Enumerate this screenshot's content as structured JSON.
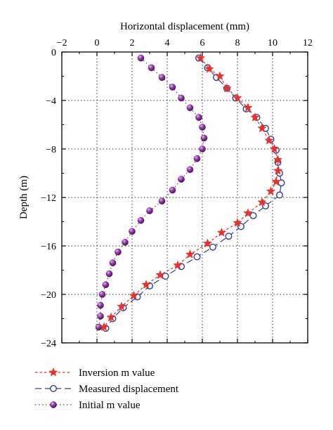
{
  "chart_data": {
    "type": "line",
    "title": "",
    "xlabel": "Horizontal displacement (mm)",
    "ylabel": "Depth (m)",
    "xlim": [
      -2,
      12
    ],
    "ylim": [
      -24,
      0
    ],
    "xticks": [
      -2,
      0,
      2,
      4,
      6,
      8,
      10,
      12
    ],
    "yticks": [
      0,
      -4,
      -8,
      -12,
      -16,
      -20,
      -24
    ],
    "grid": true,
    "legend_position": "bottom",
    "series": [
      {
        "name": "Inversion m value",
        "color": "#e8312a",
        "marker": "star",
        "line": "dashed",
        "points": [
          [
            5.9,
            -0.5
          ],
          [
            6.4,
            -1.4
          ],
          [
            7.0,
            -2.0
          ],
          [
            7.4,
            -3.0
          ],
          [
            8.0,
            -3.8
          ],
          [
            8.6,
            -4.6
          ],
          [
            9.0,
            -5.4
          ],
          [
            9.4,
            -6.3
          ],
          [
            9.8,
            -7.3
          ],
          [
            10.1,
            -8.0
          ],
          [
            10.3,
            -8.9
          ],
          [
            10.3,
            -9.8
          ],
          [
            10.2,
            -10.7
          ],
          [
            9.9,
            -11.5
          ],
          [
            9.4,
            -12.4
          ],
          [
            8.6,
            -13.3
          ],
          [
            8.0,
            -14.1
          ],
          [
            7.1,
            -14.9
          ],
          [
            6.3,
            -15.8
          ],
          [
            5.3,
            -16.7
          ],
          [
            4.6,
            -17.6
          ],
          [
            3.6,
            -18.4
          ],
          [
            2.8,
            -19.2
          ],
          [
            2.1,
            -20.1
          ],
          [
            1.4,
            -21.0
          ],
          [
            0.8,
            -21.9
          ],
          [
            0.4,
            -22.7
          ]
        ]
      },
      {
        "name": "Measured displacement",
        "color": "#2d3f9c",
        "marker": "circle",
        "line": "longdash",
        "points": [
          [
            5.8,
            -0.5
          ],
          [
            6.3,
            -1.3
          ],
          [
            6.8,
            -2.1
          ],
          [
            7.4,
            -3.0
          ],
          [
            7.9,
            -3.8
          ],
          [
            8.5,
            -4.7
          ],
          [
            9.1,
            -5.4
          ],
          [
            9.6,
            -6.3
          ],
          [
            9.9,
            -7.2
          ],
          [
            10.2,
            -8.1
          ],
          [
            10.3,
            -9.1
          ],
          [
            10.4,
            -10.0
          ],
          [
            10.5,
            -10.8
          ],
          [
            10.4,
            -11.8
          ],
          [
            9.6,
            -12.7
          ],
          [
            8.9,
            -13.5
          ],
          [
            8.2,
            -14.4
          ],
          [
            7.5,
            -15.2
          ],
          [
            6.6,
            -16.1
          ],
          [
            5.7,
            -16.9
          ],
          [
            4.8,
            -17.7
          ],
          [
            3.9,
            -18.5
          ],
          [
            3.0,
            -19.3
          ],
          [
            2.3,
            -20.2
          ],
          [
            1.5,
            -21.1
          ],
          [
            0.9,
            -22.0
          ],
          [
            0.5,
            -22.8
          ]
        ]
      },
      {
        "name": "Initial m value",
        "color": "#7b2c8e",
        "marker": "sphere",
        "line": "dotted",
        "points": [
          [
            2.5,
            -0.5
          ],
          [
            3.1,
            -1.3
          ],
          [
            3.7,
            -2.1
          ],
          [
            4.3,
            -2.9
          ],
          [
            4.8,
            -3.8
          ],
          [
            5.3,
            -4.6
          ],
          [
            5.8,
            -5.4
          ],
          [
            6.0,
            -6.2
          ],
          [
            6.1,
            -7.1
          ],
          [
            6.0,
            -8.0
          ],
          [
            5.7,
            -8.8
          ],
          [
            5.3,
            -9.7
          ],
          [
            4.8,
            -10.5
          ],
          [
            4.3,
            -11.4
          ],
          [
            3.7,
            -12.3
          ],
          [
            3.0,
            -13.1
          ],
          [
            2.5,
            -13.9
          ],
          [
            2.0,
            -14.8
          ],
          [
            1.6,
            -15.7
          ],
          [
            1.2,
            -16.5
          ],
          [
            0.9,
            -17.4
          ],
          [
            0.7,
            -18.3
          ],
          [
            0.5,
            -19.2
          ],
          [
            0.3,
            -20.0
          ],
          [
            0.2,
            -20.9
          ],
          [
            0.2,
            -21.8
          ],
          [
            0.1,
            -22.7
          ]
        ]
      }
    ]
  }
}
